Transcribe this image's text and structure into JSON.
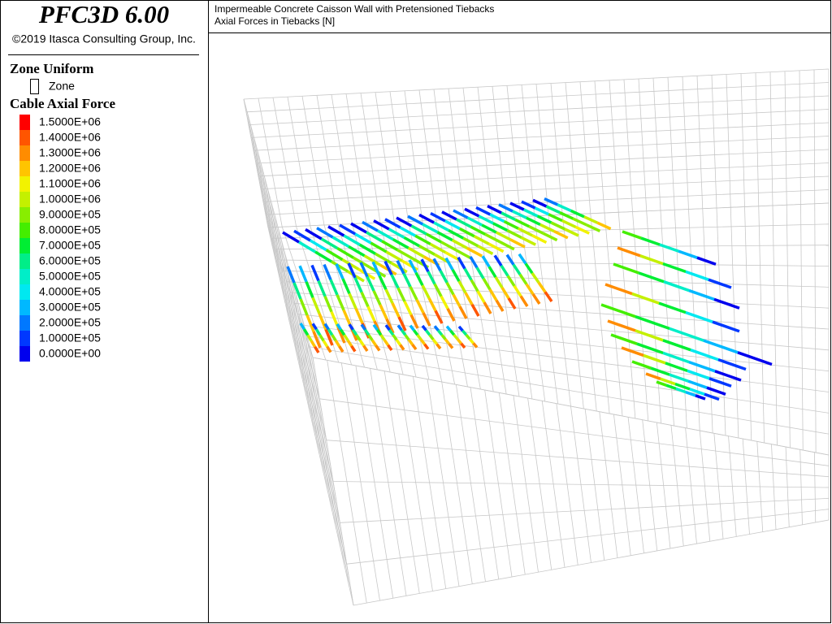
{
  "header": {
    "title": "PFC3D 6.00",
    "copyright": "©2019 Itasca Consulting Group, Inc."
  },
  "plot": {
    "title": "Impermeable Concrete Caisson Wall with Pretensioned Tiebacks",
    "subtitle": "Axial Forces in Tiebacks [N]"
  },
  "legend": {
    "zone_heading": "Zone Uniform",
    "zone_item": "Zone",
    "cable_heading": "Cable Axial Force",
    "entries": [
      {
        "label": "1.5000E+06",
        "color": "#ff0000"
      },
      {
        "label": "1.4000E+06",
        "color": "#ff5500"
      },
      {
        "label": "1.3000E+06",
        "color": "#ff8c00"
      },
      {
        "label": "1.2000E+06",
        "color": "#ffc400"
      },
      {
        "label": "1.1000E+06",
        "color": "#f2f200"
      },
      {
        "label": "1.0000E+06",
        "color": "#c4f000"
      },
      {
        "label": "9.0000E+05",
        "color": "#88ee00"
      },
      {
        "label": "8.0000E+05",
        "color": "#44ee00"
      },
      {
        "label": "7.0000E+05",
        "color": "#00ee33"
      },
      {
        "label": "6.0000E+05",
        "color": "#00ee88"
      },
      {
        "label": "5.0000E+05",
        "color": "#00eec8"
      },
      {
        "label": "4.0000E+05",
        "color": "#00e8f0"
      },
      {
        "label": "3.0000E+05",
        "color": "#00b8ff"
      },
      {
        "label": "2.0000E+05",
        "color": "#0078ff"
      },
      {
        "label": "1.0000E+05",
        "color": "#0038ff"
      },
      {
        "label": "0.0000E+00",
        "color": "#0000ee"
      }
    ]
  }
}
